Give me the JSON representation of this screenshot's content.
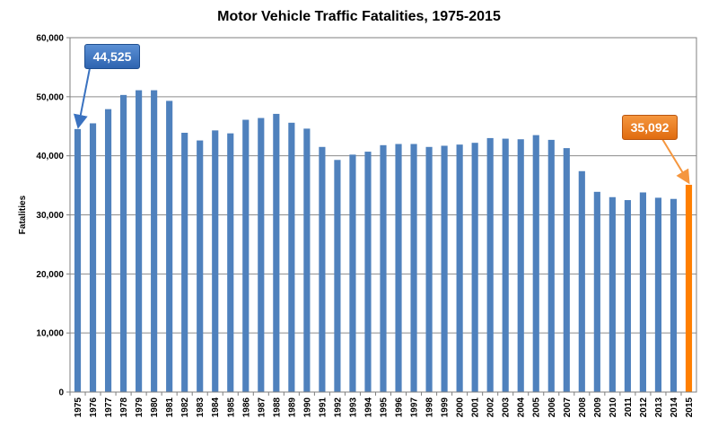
{
  "chart_data": {
    "type": "bar",
    "title": "Motor Vehicle Traffic Fatalities, 1975-2015",
    "ylabel": "Fatalities",
    "xlabel": "",
    "ylim": [
      0,
      60000
    ],
    "yticks": [
      0,
      10000,
      20000,
      30000,
      40000,
      50000,
      60000
    ],
    "ytick_labels": [
      "0",
      "10,000",
      "20,000",
      "30,000",
      "40,000",
      "50,000",
      "60,000"
    ],
    "grid": true,
    "categories": [
      "1975",
      "1976",
      "1977",
      "1978",
      "1979",
      "1980",
      "1981",
      "1982",
      "1983",
      "1984",
      "1985",
      "1986",
      "1987",
      "1988",
      "1989",
      "1990",
      "1991",
      "1992",
      "1993",
      "1994",
      "1995",
      "1996",
      "1997",
      "1998",
      "1999",
      "2000",
      "2001",
      "2002",
      "2003",
      "2004",
      "2005",
      "2006",
      "2007",
      "2008",
      "2009",
      "2010",
      "2011",
      "2012",
      "2013",
      "2014",
      "2015"
    ],
    "values": [
      44525,
      45500,
      47900,
      50300,
      51100,
      51100,
      49300,
      43900,
      42600,
      44300,
      43800,
      46100,
      46400,
      47100,
      45600,
      44600,
      41500,
      39300,
      40200,
      40700,
      41800,
      42000,
      42000,
      41500,
      41700,
      41900,
      42200,
      43000,
      42900,
      42800,
      43500,
      42700,
      41300,
      37400,
      33900,
      32999,
      32500,
      33800,
      32900,
      32700,
      35092
    ],
    "colors": {
      "bar": "#4f81bd",
      "highlight": "#ff7f00"
    },
    "annotations": [
      {
        "label": "44,525",
        "category": "1975",
        "color": "#3a72c0"
      },
      {
        "label": "35,092",
        "category": "2015",
        "color": "#ed7d31"
      }
    ]
  }
}
